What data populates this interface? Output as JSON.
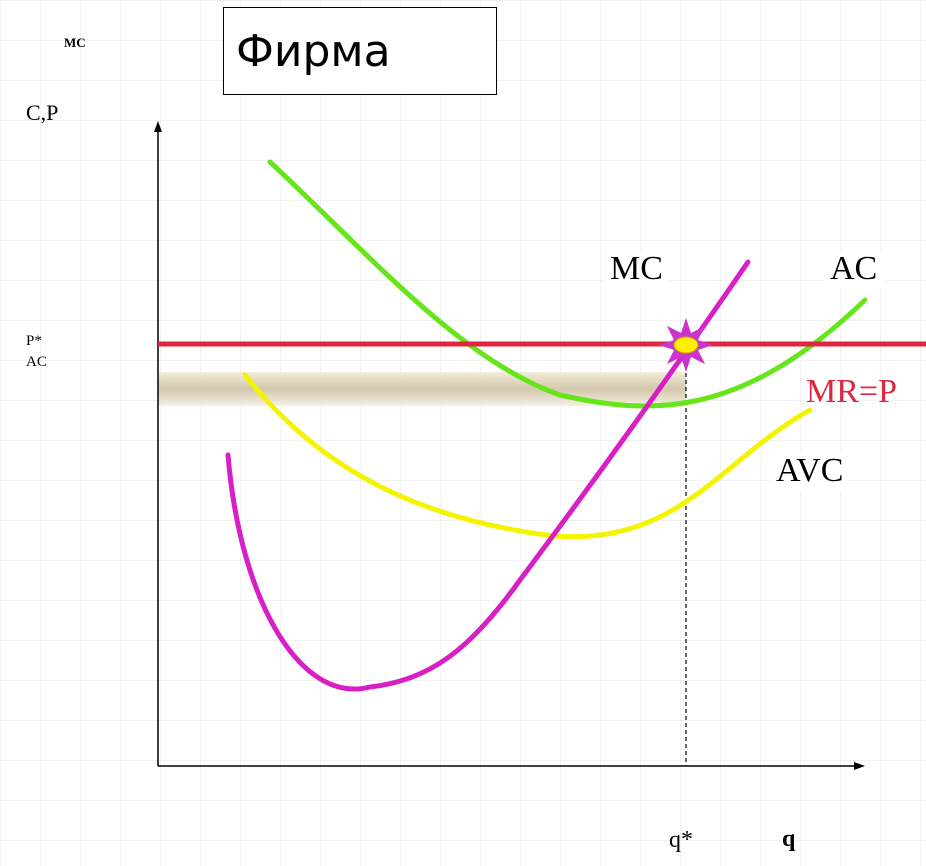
{
  "title": "Фирма",
  "corner_label": "MC",
  "colors": {
    "mc": "#d81fc5",
    "ac": "#66e61a",
    "avc": "#f4f400",
    "mr": "#e0253f",
    "star": "#cc33cc",
    "star_center": "#ffee00",
    "axis": "#000000"
  },
  "chart_data": {
    "type": "line",
    "title": "Фирма",
    "ylabel": "C,P",
    "xlabel": "q",
    "y_ticks": [
      "P*",
      "AC"
    ],
    "x_ticks": [
      "q*"
    ],
    "grid": false,
    "series": [
      {
        "name": "MC"
      },
      {
        "name": "AC"
      },
      {
        "name": "AVC"
      },
      {
        "name": "MR=P"
      }
    ],
    "annotations": [
      "equilibrium marker at MC = MR = P, quantity q*"
    ]
  }
}
